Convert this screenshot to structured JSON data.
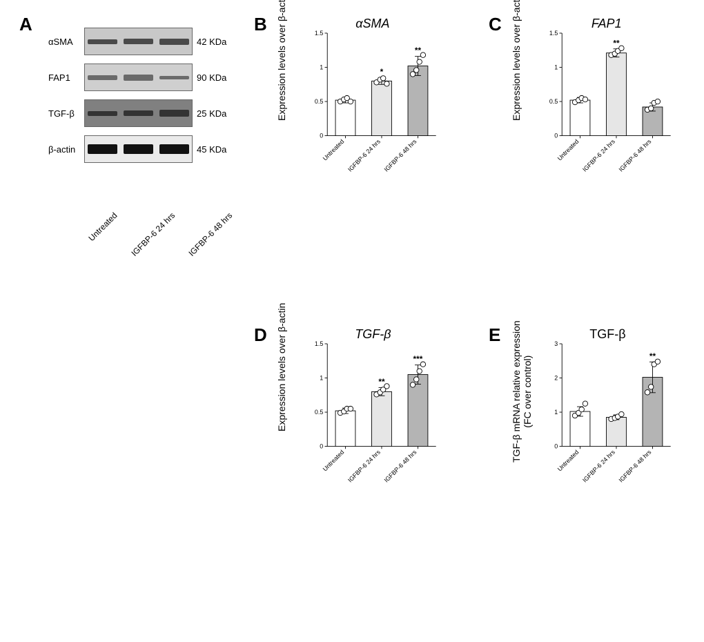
{
  "panelA": {
    "letter": "A",
    "lanes": [
      "Untreated",
      "IGFBP-6 24 hrs",
      "IGFBP-6 48 hrs"
    ],
    "rows": [
      {
        "label": "αSMA",
        "kda": "42 KDa",
        "bg": "#c8c8c8",
        "band_color": "#4a4a4a",
        "band_heights": [
          7,
          8,
          9
        ]
      },
      {
        "label": "FAP1",
        "kda": "90 KDa",
        "bg": "#cfcfcf",
        "band_color": "#6a6a6a",
        "band_heights": [
          7,
          9,
          5
        ]
      },
      {
        "label": "TGF-β",
        "kda": "25 KDa",
        "bg": "#808080",
        "band_color": "#333333",
        "band_heights": [
          7,
          8,
          10
        ]
      },
      {
        "label": "β-actin",
        "kda": "45 KDa",
        "bg": "#eaeaea",
        "band_color": "#111111",
        "band_heights": [
          14,
          14,
          14
        ]
      }
    ]
  },
  "panelB": {
    "letter": "B",
    "title": "αSMA",
    "ylabel": "Expression levels over β-actin",
    "categories": [
      "Untreated",
      "IGFBP-6 24 hrs",
      "IGFBP-6 48 hrs"
    ],
    "values": [
      0.52,
      0.8,
      1.02
    ],
    "errs": [
      0.04,
      0.05,
      0.14
    ],
    "sig": [
      "",
      "*",
      "**"
    ],
    "points": [
      [
        0.5,
        0.53,
        0.55,
        0.5
      ],
      [
        0.78,
        0.82,
        0.84,
        0.76
      ],
      [
        0.9,
        0.96,
        1.08,
        1.18
      ]
    ],
    "bar_colors": [
      "#ffffff",
      "#e6e6e6",
      "#b4b4b4"
    ],
    "ylim": [
      0,
      1.5
    ],
    "ytick_step": 0.5,
    "axis_color": "#000000",
    "axis_width": 1.2,
    "bar_stroke": "#000000",
    "bar_width": 0.55,
    "marker_r": 5,
    "label_fontsize": 14,
    "tick_fontsize": 12
  },
  "panelC": {
    "letter": "C",
    "title": "FAP1",
    "ylabel": "Expression levels over β-actin",
    "categories": [
      "Untreated",
      "IGFBP-6 24 hrs",
      "IGFBP-6 48 hrs"
    ],
    "values": [
      0.52,
      1.21,
      0.42
    ],
    "errs": [
      0.04,
      0.06,
      0.06
    ],
    "sig": [
      "",
      "**",
      ""
    ],
    "points": [
      [
        0.49,
        0.52,
        0.55,
        0.53
      ],
      [
        1.18,
        1.2,
        1.24,
        1.28
      ],
      [
        0.38,
        0.4,
        0.48,
        0.5
      ]
    ],
    "bar_colors": [
      "#ffffff",
      "#e6e6e6",
      "#b4b4b4"
    ],
    "ylim": [
      0,
      1.5
    ],
    "ytick_step": 0.5,
    "axis_color": "#000000",
    "axis_width": 1.2,
    "bar_stroke": "#000000",
    "bar_width": 0.55,
    "marker_r": 5,
    "label_fontsize": 14,
    "tick_fontsize": 12
  },
  "panelD": {
    "letter": "D",
    "title": "TGF-β",
    "ylabel": "Expression levels over β-actin",
    "categories": [
      "Untreated",
      "IGFBP-6 24 hrs",
      "IGFBP-6 48 hrs"
    ],
    "values": [
      0.52,
      0.8,
      1.05
    ],
    "errs": [
      0.04,
      0.06,
      0.14
    ],
    "sig": [
      "",
      "**",
      "***"
    ],
    "points": [
      [
        0.49,
        0.51,
        0.55,
        0.55
      ],
      [
        0.76,
        0.79,
        0.83,
        0.88
      ],
      [
        0.9,
        0.98,
        1.1,
        1.2
      ]
    ],
    "bar_colors": [
      "#ffffff",
      "#e6e6e6",
      "#b4b4b4"
    ],
    "ylim": [
      0,
      1.5
    ],
    "ytick_step": 0.5,
    "axis_color": "#000000",
    "axis_width": 1.2,
    "bar_stroke": "#000000",
    "bar_width": 0.55,
    "marker_r": 5,
    "label_fontsize": 14,
    "tick_fontsize": 12
  },
  "panelE": {
    "letter": "E",
    "title": "TGF-β",
    "ylabel": "TGF-β mRNA relative expression\n(FC over control)",
    "categories": [
      "Untreated",
      "IGFBP-6 24 hrs",
      "IGFBP-6 48 hrs"
    ],
    "values": [
      1.02,
      0.85,
      2.02
    ],
    "errs": [
      0.14,
      0.07,
      0.45
    ],
    "sig": [
      "",
      "",
      "**"
    ],
    "points": [
      [
        0.9,
        0.98,
        1.08,
        1.25
      ],
      [
        0.8,
        0.83,
        0.87,
        0.94
      ],
      [
        1.58,
        1.74,
        2.4,
        2.48
      ]
    ],
    "bar_colors": [
      "#ffffff",
      "#e6e6e6",
      "#b4b4b4"
    ],
    "ylim": [
      0,
      3
    ],
    "ytick_step": 1,
    "axis_color": "#000000",
    "axis_width": 1.2,
    "bar_stroke": "#000000",
    "bar_width": 0.55,
    "marker_r": 5,
    "label_fontsize": 14,
    "tick_fontsize": 12
  }
}
